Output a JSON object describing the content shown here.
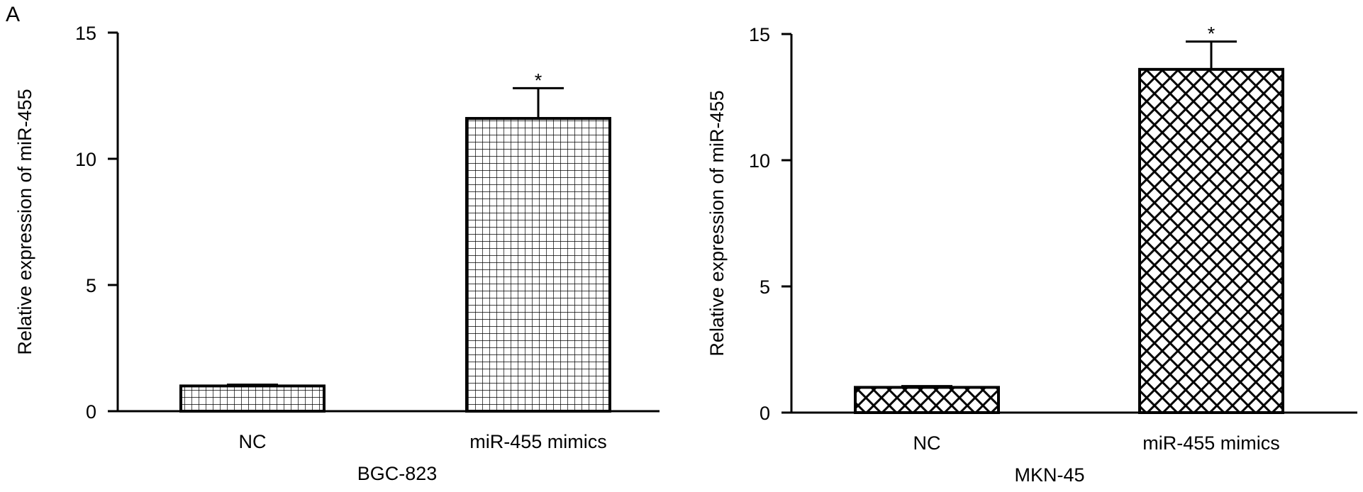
{
  "figure": {
    "panel_label": "A"
  },
  "chart_data": [
    {
      "type": "bar",
      "title": "",
      "xlabel": "BGC-823",
      "ylabel": "Relative expression of miR-455",
      "categories": [
        "NC",
        "miR-455 mimics"
      ],
      "values": [
        1.0,
        11.6
      ],
      "error": [
        0.05,
        1.2
      ],
      "significance": [
        "",
        "*"
      ],
      "ylim": [
        0,
        15
      ],
      "yticks": [
        0,
        5,
        10,
        15
      ],
      "pattern": "grid",
      "grid": false,
      "legend": "none"
    },
    {
      "type": "bar",
      "title": "",
      "xlabel": "MKN-45",
      "ylabel": "Relative expression of miR-455",
      "categories": [
        "NC",
        "miR-455 mimics"
      ],
      "values": [
        1.0,
        13.6
      ],
      "error": [
        0.05,
        1.1
      ],
      "significance": [
        "",
        "*"
      ],
      "ylim": [
        0,
        15
      ],
      "yticks": [
        0,
        5,
        10,
        15
      ],
      "pattern": "crosshatch",
      "grid": false,
      "legend": "none"
    }
  ]
}
